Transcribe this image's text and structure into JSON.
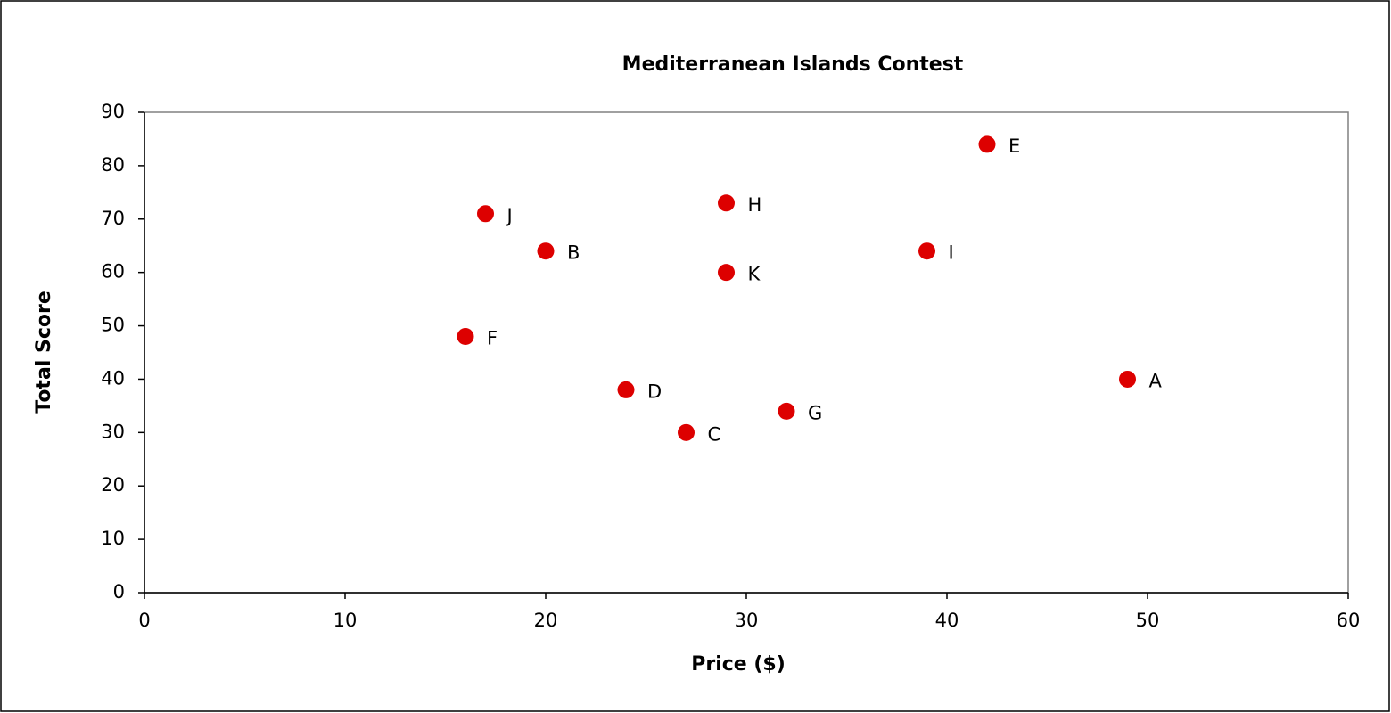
{
  "chart_data": {
    "type": "scatter",
    "title": "Mediterranean Islands Contest",
    "x_label": "Price ($)",
    "y_label": "Total Score",
    "labels": [
      "A",
      "B",
      "C",
      "D",
      "E",
      "F",
      "G",
      "H",
      "I",
      "J",
      "K"
    ],
    "x": [
      49,
      20,
      27,
      24,
      42,
      16,
      32,
      29,
      39,
      17,
      29
    ],
    "values": [
      40,
      64,
      30,
      38,
      84,
      48,
      34,
      73,
      64,
      71,
      60
    ],
    "color": "#dd0000",
    "xlim": [
      0,
      60
    ],
    "xticks": [
      0,
      10,
      20,
      30,
      40,
      50,
      60
    ],
    "ylim": [
      0,
      90
    ],
    "yticks": [
      0,
      10,
      20,
      30,
      40,
      50,
      60,
      70,
      80,
      90
    ],
    "grid": false
  }
}
